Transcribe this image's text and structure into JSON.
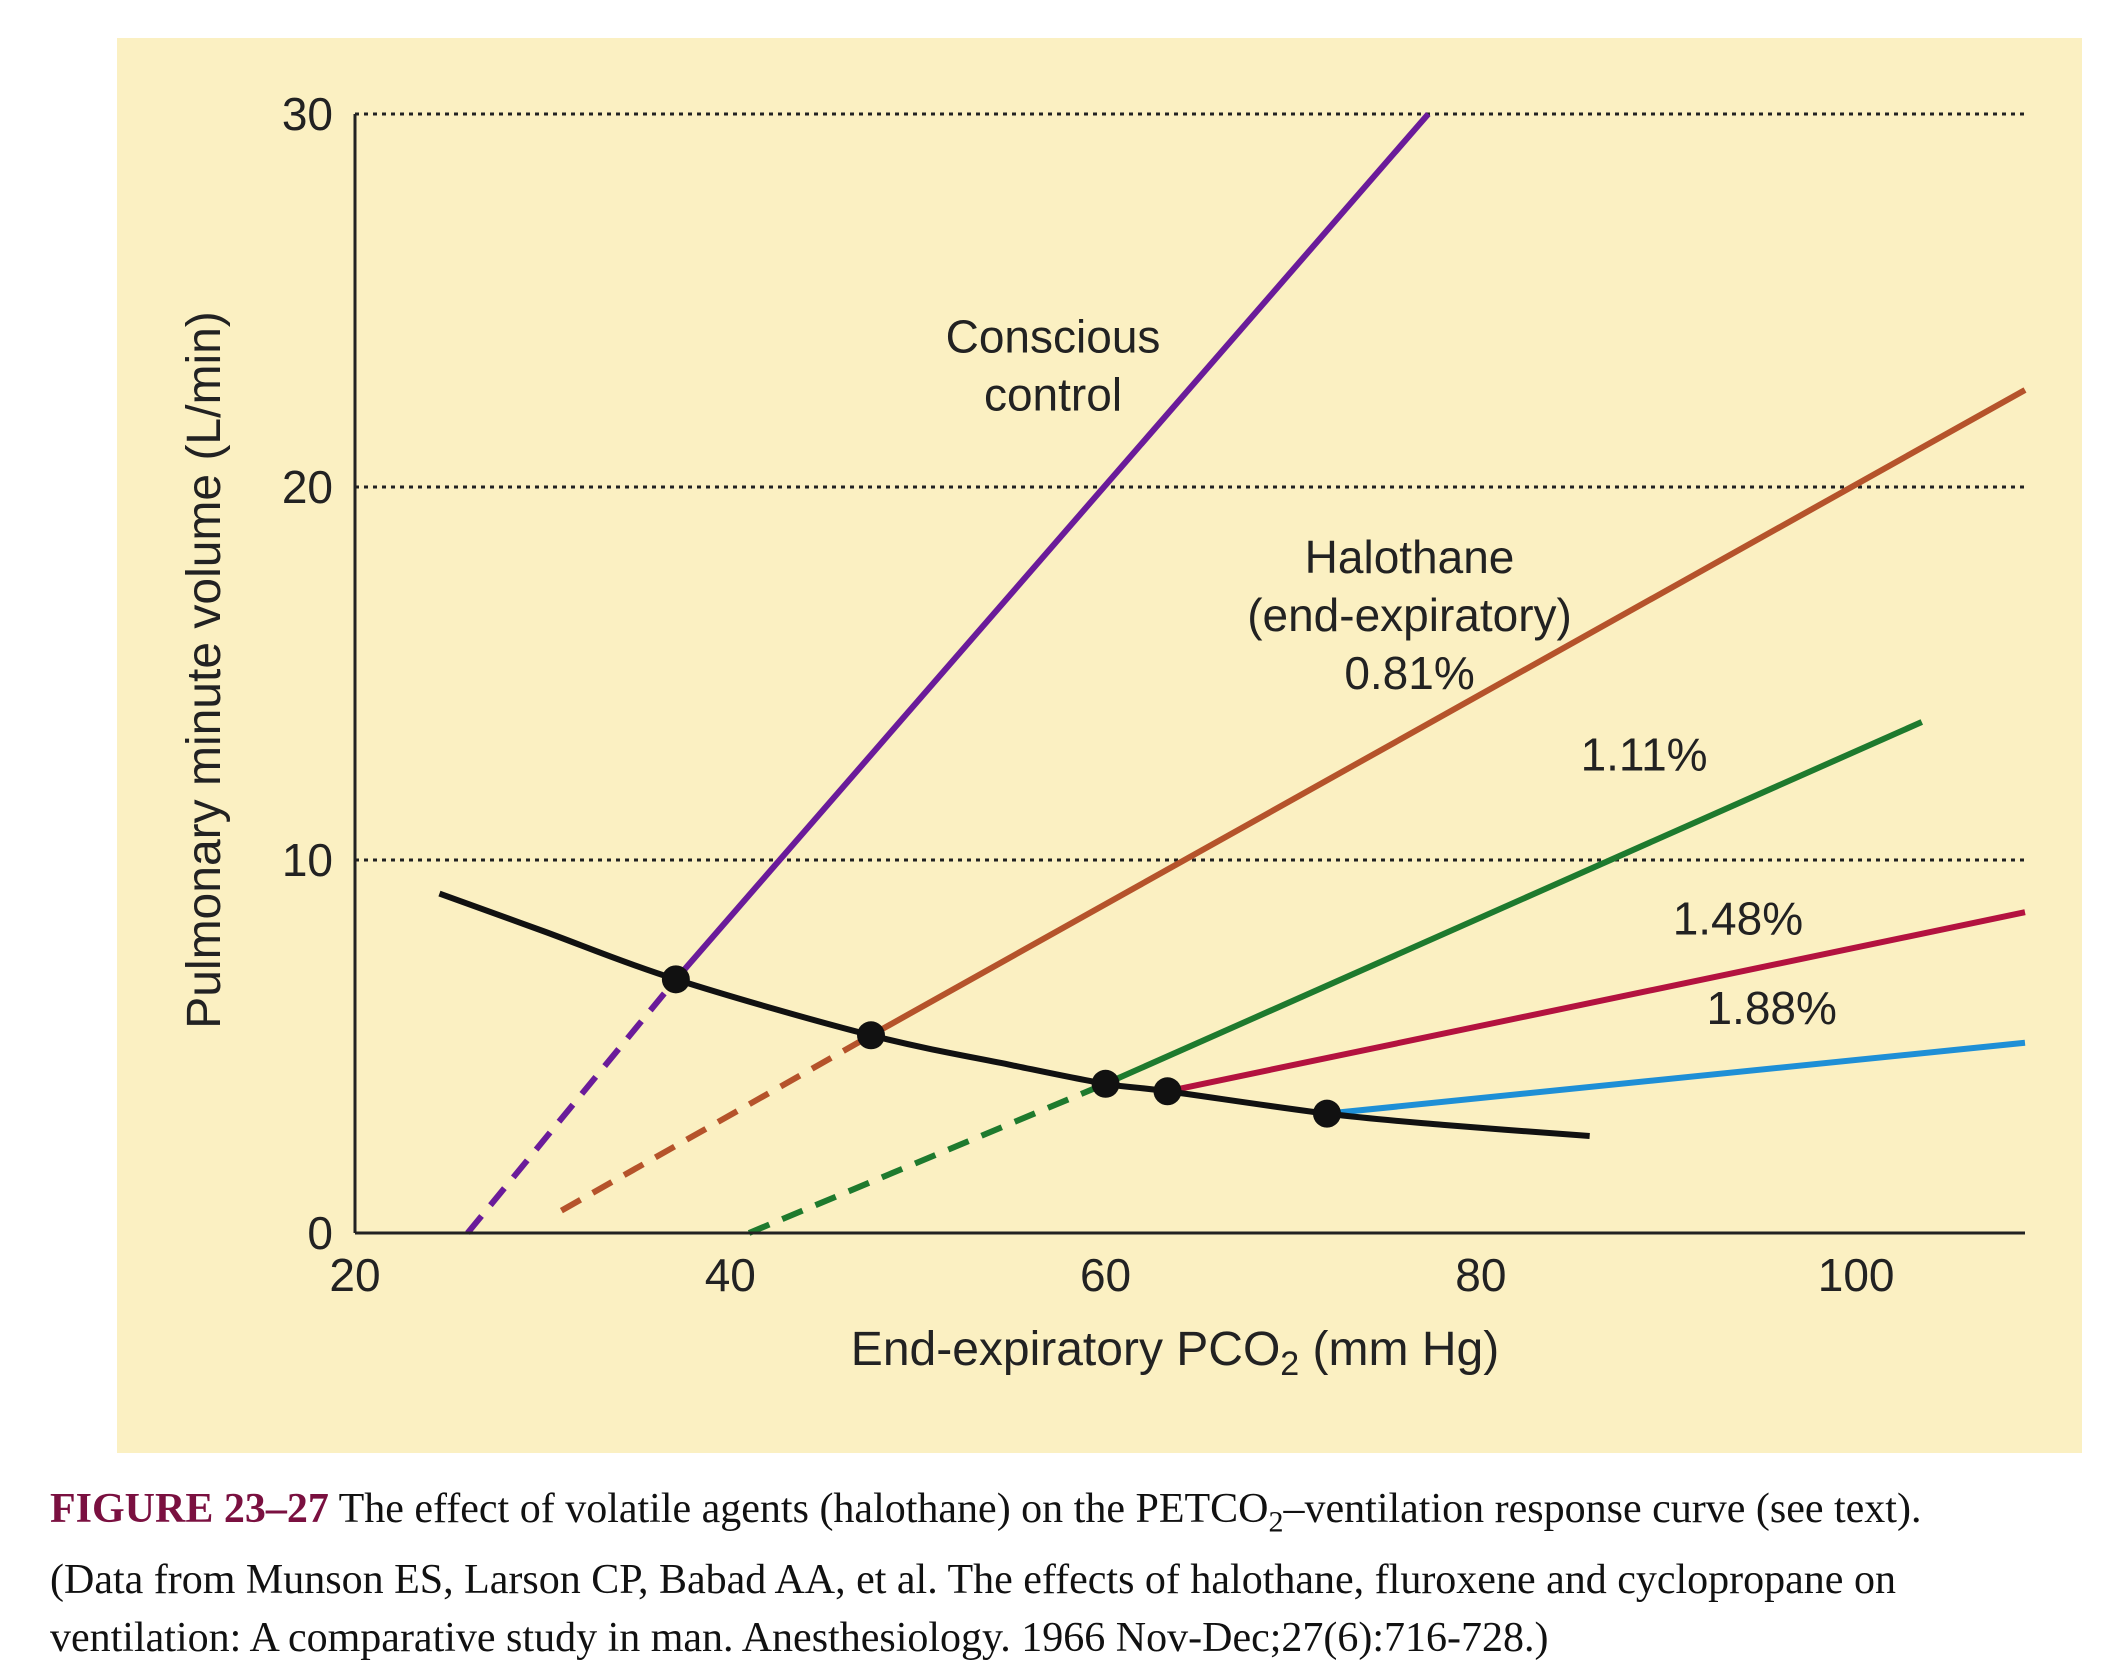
{
  "colors": {
    "panel_background": "#FBF0C2",
    "conscious_control": "#6A1B9A",
    "halothane_081": "#B5532B",
    "halothane_111": "#1E7A2E",
    "halothane_148": "#B3123F",
    "halothane_188": "#1E8FD6",
    "min_curve": "#111111",
    "caption_figure_number": "#7A1040"
  },
  "chart_data": {
    "type": "line",
    "xlabel_main": "End-expiratory PCO",
    "xlabel_sub": "2",
    "xlabel_suffix": " (mm Hg)",
    "ylabel": "Pulmonary minute volume (L/min)",
    "xlim": [
      20,
      109
    ],
    "ylim": [
      0,
      30
    ],
    "xticks": [
      20,
      40,
      60,
      80,
      100
    ],
    "yticks": [
      0,
      10,
      20,
      30
    ],
    "gridlines_y": [
      10,
      20,
      30
    ],
    "grid_style": "dotted horizontal",
    "series": [
      {
        "id": "conscious",
        "color_key": "conscious_control",
        "solid": [
          [
            37.1,
            6.8
          ],
          [
            77.2,
            30.0
          ]
        ],
        "dashed": [
          [
            26.0,
            0.0
          ],
          [
            37.1,
            6.8
          ]
        ]
      },
      {
        "id": "halothane-081",
        "color_key": "halothane_081",
        "solid": [
          [
            47.5,
            5.3
          ],
          [
            109.0,
            22.6
          ]
        ],
        "dashed": [
          [
            31.0,
            0.6
          ],
          [
            47.5,
            5.3
          ]
        ]
      },
      {
        "id": "halothane-111",
        "color_key": "halothane_111",
        "solid": [
          [
            60.0,
            4.0
          ],
          [
            103.5,
            13.7
          ]
        ],
        "dashed": [
          [
            41.0,
            0.0
          ],
          [
            60.0,
            4.0
          ]
        ]
      },
      {
        "id": "halothane-148",
        "color_key": "halothane_148",
        "solid": [
          [
            63.3,
            3.8
          ],
          [
            109.0,
            8.6
          ]
        ],
        "dashed": []
      },
      {
        "id": "halothane-188",
        "color_key": "halothane_188",
        "solid": [
          [
            71.8,
            3.2
          ],
          [
            109.0,
            5.1
          ]
        ],
        "dashed": []
      }
    ],
    "min_curve": {
      "color_key": "min_curve",
      "points": [
        [
          24.5,
          9.1
        ],
        [
          30,
          8.1
        ],
        [
          37.1,
          6.8
        ],
        [
          47.5,
          5.3
        ],
        [
          55,
          4.5
        ],
        [
          60.0,
          4.0
        ],
        [
          63.3,
          3.8
        ],
        [
          71.8,
          3.2
        ],
        [
          78,
          2.9
        ],
        [
          85.8,
          2.6
        ]
      ]
    },
    "markers": [
      [
        37.1,
        6.8
      ],
      [
        47.5,
        5.3
      ],
      [
        60.0,
        4.0
      ],
      [
        63.3,
        3.8
      ],
      [
        71.8,
        3.2
      ]
    ],
    "annotations": [
      {
        "id": "conscious-label",
        "lines": [
          "Conscious",
          "control"
        ],
        "at": [
          57.2,
          23.6
        ]
      },
      {
        "id": "halothane-label",
        "lines": [
          "Halothane",
          "(end-expiratory)",
          "0.81%"
        ],
        "at": [
          76.2,
          17.7
        ]
      },
      {
        "id": "label-111",
        "lines": [
          "1.11%"
        ],
        "at": [
          88.7,
          12.4
        ]
      },
      {
        "id": "label-148",
        "lines": [
          "1.48%"
        ],
        "at": [
          93.7,
          8.0
        ]
      },
      {
        "id": "label-188",
        "lines": [
          "1.88%"
        ],
        "at": [
          95.5,
          5.6
        ]
      }
    ]
  },
  "caption": {
    "figure_number": "FIGURE 23–27",
    "text_before_sub": " The effect of volatile agents (halothane) on the PETCO",
    "sub": "2",
    "text_after_sub": "–ventilation response curve (see text).",
    "line2": "(Data from Munson ES, Larson CP, Babad AA, et al. The effects of halothane, fluroxene and cyclopropane on",
    "line3": "ventilation: A comparative study in man. Anesthesiology. 1966 Nov-Dec;27(6):716-728.)"
  }
}
